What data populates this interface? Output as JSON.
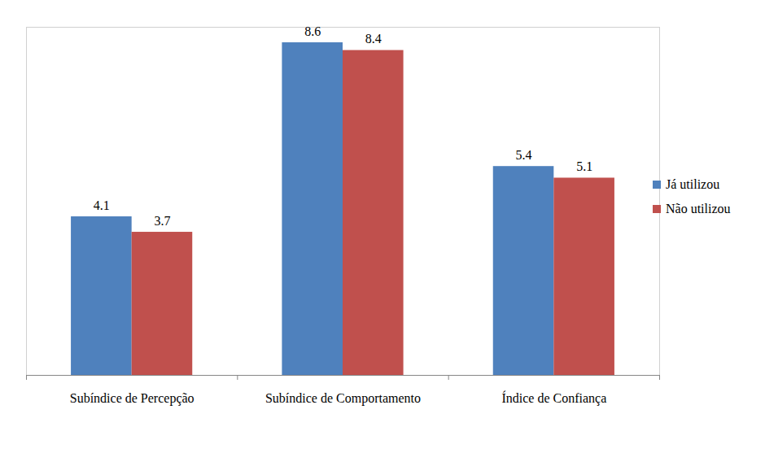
{
  "chart_data": {
    "type": "bar",
    "categories": [
      "Subíndice de Percepção",
      "Subíndice de Comportamento",
      "Índice de Confiança"
    ],
    "series": [
      {
        "name": "Já utilizou",
        "color": "#4f81bd",
        "values": [
          4.1,
          8.6,
          5.4
        ]
      },
      {
        "name": "Não utilizou",
        "color": "#c0504d",
        "values": [
          3.7,
          8.4,
          5.1
        ]
      }
    ],
    "ylim": [
      0,
      9
    ],
    "yticks": [],
    "grid": false,
    "legend": "right",
    "data_labels": true,
    "tick_labels": "x"
  }
}
